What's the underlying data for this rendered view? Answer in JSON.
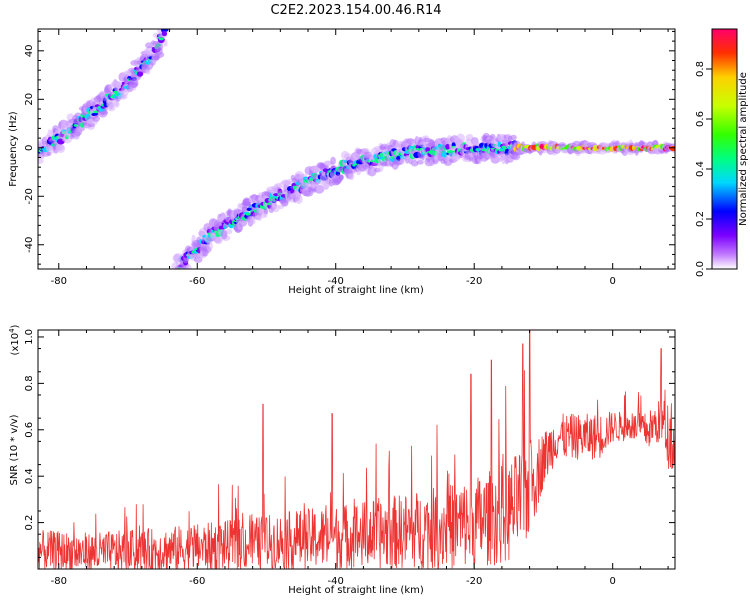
{
  "title": "C2E2.2023.154.00.46.R14",
  "chart_data": [
    {
      "type": "heatmap",
      "xlabel": "Height of straight line (km)",
      "ylabel": "Frequency (Hz)",
      "xlim": [
        -83,
        9
      ],
      "ylim": [
        -50,
        49
      ],
      "xticks": [
        -80,
        -60,
        -40,
        -20,
        0
      ],
      "yticks": [
        -40,
        -20,
        0,
        20,
        40
      ],
      "xtick_labels": [
        "-80",
        "-60",
        "-40",
        "-20",
        "0"
      ],
      "ytick_labels": [
        "-40",
        "-20",
        "0",
        "20",
        "40"
      ],
      "colorbar": {
        "label": "Normalized spectral amplitude",
        "range": [
          0,
          0.96
        ],
        "ticks": [
          0.0,
          0.2,
          0.4,
          0.6,
          0.8
        ],
        "tick_labels": [
          "0.0",
          "0.2",
          "0.4",
          "0.6",
          "0.8"
        ],
        "colors": [
          "#ffffff",
          "#c27bff",
          "#7b00ff",
          "#0000ff",
          "#00d8ff",
          "#00ff80",
          "#33ff00",
          "#c8ff00",
          "#ffd000",
          "#ff3000",
          "#ff006a"
        ]
      },
      "ridges": [
        {
          "x": [
            -83,
            -79,
            -75,
            -71,
            -67,
            -64.5
          ],
          "y": [
            -2,
            6,
            15,
            24,
            36,
            49
          ]
        },
        {
          "x": [
            -63,
            -58,
            -53,
            -48,
            -43,
            -38,
            -32,
            -26,
            -20,
            -14
          ],
          "y": [
            -50,
            -36,
            -27,
            -20,
            -13,
            -7,
            -3,
            -1,
            -0.5,
            0
          ]
        },
        {
          "x": [
            -14,
            9
          ],
          "y": [
            0,
            0
          ]
        }
      ]
    },
    {
      "type": "line",
      "xlabel": "Height of straight line (km)",
      "ylabel": "SNR (10 * v/v)",
      "y_multiplier": "(x10",
      "y_multiplier_exp": "4",
      "y_multiplier_close": ")",
      "xlim": [
        -83,
        9
      ],
      "ylim": [
        0,
        1.03
      ],
      "xticks": [
        -80,
        -60,
        -40,
        -20,
        0
      ],
      "yticks": [
        0.2,
        0.4,
        0.6,
        0.8,
        1.0
      ],
      "xtick_labels": [
        "-80",
        "-60",
        "-40",
        "-20",
        "0"
      ],
      "ytick_labels": [
        "0.2",
        "0.4",
        "0.6",
        "0.8",
        "1.0"
      ],
      "color": "#ee3333",
      "envelope": {
        "x": [
          -83,
          -75,
          -65,
          -55,
          -45,
          -35,
          -25,
          -20,
          -15,
          -12,
          -10,
          -8,
          -5,
          -2,
          0,
          3,
          5,
          7,
          8,
          9
        ],
        "base": [
          0.06,
          0.05,
          0.06,
          0.08,
          0.1,
          0.12,
          0.14,
          0.16,
          0.2,
          0.3,
          0.45,
          0.55,
          0.55,
          0.55,
          0.6,
          0.6,
          0.58,
          0.62,
          0.55,
          0.5
        ],
        "noise": [
          0.09,
          0.09,
          0.1,
          0.11,
          0.13,
          0.15,
          0.18,
          0.2,
          0.22,
          0.22,
          0.12,
          0.1,
          0.1,
          0.1,
          0.07,
          0.06,
          0.08,
          0.1,
          0.15,
          0.1
        ]
      },
      "spikes": [
        {
          "x": -50.5,
          "y": 0.71
        },
        {
          "x": -40.5,
          "y": 0.67
        },
        {
          "x": -20.5,
          "y": 0.84
        },
        {
          "x": -17.5,
          "y": 0.9
        },
        {
          "x": -13,
          "y": 0.97
        },
        {
          "x": -12,
          "y": 1.03
        },
        {
          "x": 7,
          "y": 0.95
        }
      ]
    }
  ]
}
